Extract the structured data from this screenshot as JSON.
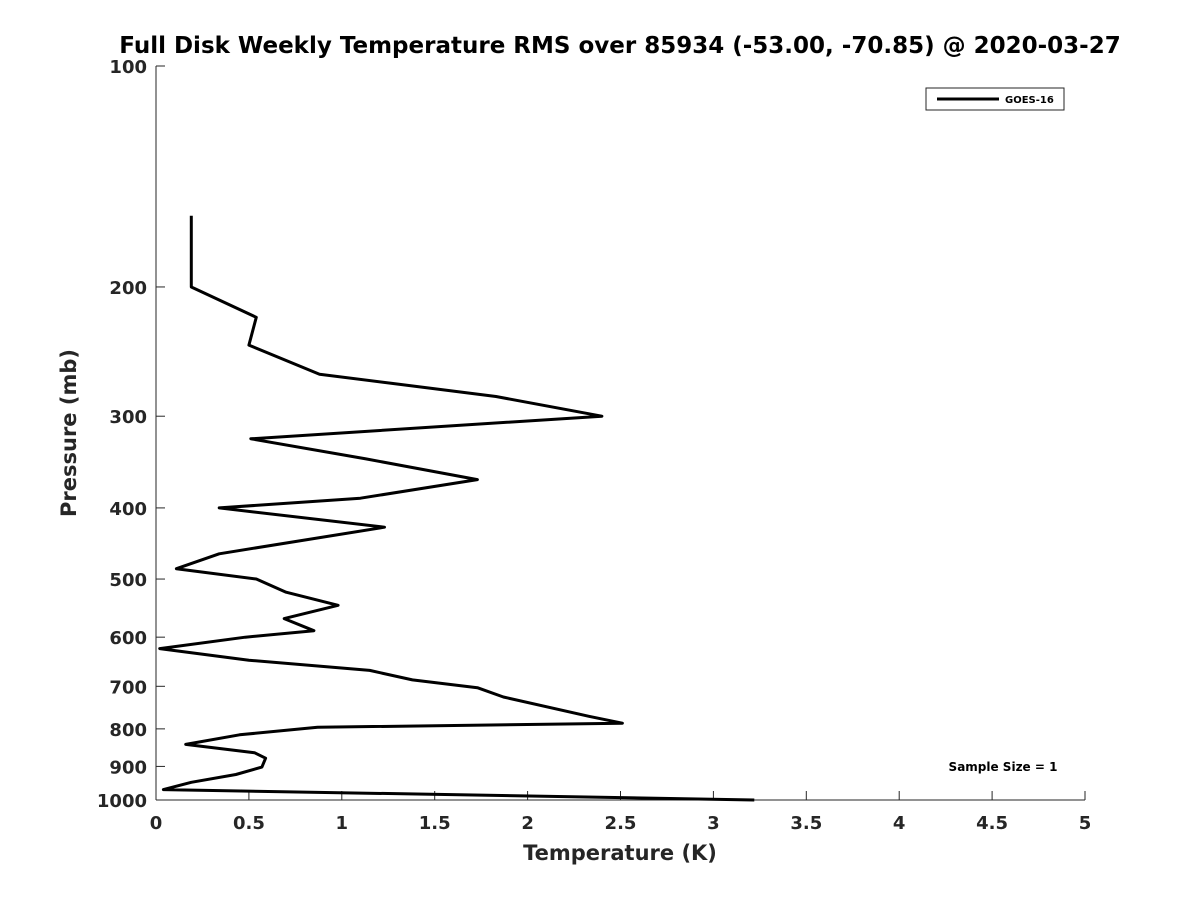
{
  "chart_data": {
    "type": "line",
    "title": "Full Disk Weekly Temperature RMS over 85934 (-53.00, -70.85) @ 2020-03-27",
    "xlabel": "Temperature (K)",
    "ylabel": "Pressure (mb)",
    "xlim": [
      0,
      5
    ],
    "ylim": [
      100,
      1000
    ],
    "yscale": "log",
    "y_reversed": true,
    "xticks": [
      0,
      0.5,
      1,
      1.5,
      2,
      2.5,
      3,
      3.5,
      4,
      4.5,
      5
    ],
    "xtick_labels": [
      "0",
      "0.5",
      "1",
      "1.5",
      "2",
      "2.5",
      "3",
      "3.5",
      "4",
      "4.5",
      "5"
    ],
    "yticks": [
      100,
      200,
      300,
      400,
      500,
      600,
      700,
      800,
      900,
      1000
    ],
    "ytick_labels": [
      "100",
      "200",
      "300",
      "400",
      "500",
      "600",
      "700",
      "800",
      "900",
      "1000"
    ],
    "legend_position": "top-right",
    "series": [
      {
        "name": "GOES-16",
        "color": "#000000",
        "points": [
          [
            0.19,
            160
          ],
          [
            0.19,
            200
          ],
          [
            0.54,
            220
          ],
          [
            0.5,
            240
          ],
          [
            0.88,
            263
          ],
          [
            1.83,
            282
          ],
          [
            2.4,
            300
          ],
          [
            0.51,
            322
          ],
          [
            1.13,
            343
          ],
          [
            1.73,
            366
          ],
          [
            1.1,
            388
          ],
          [
            0.34,
            400
          ],
          [
            1.23,
            425
          ],
          [
            0.34,
            462
          ],
          [
            0.11,
            484
          ],
          [
            0.54,
            500
          ],
          [
            0.7,
            521
          ],
          [
            0.98,
            543
          ],
          [
            0.69,
            566
          ],
          [
            0.85,
            588
          ],
          [
            0.48,
            600
          ],
          [
            0.02,
            622
          ],
          [
            0.5,
            645
          ],
          [
            1.15,
            666
          ],
          [
            1.38,
            686
          ],
          [
            1.73,
            703
          ],
          [
            1.87,
            724
          ],
          [
            2.33,
            769
          ],
          [
            2.51,
            786
          ],
          [
            0.87,
            796
          ],
          [
            0.45,
            815
          ],
          [
            0.16,
            840
          ],
          [
            0.53,
            862
          ],
          [
            0.59,
            877
          ],
          [
            0.57,
            902
          ],
          [
            0.43,
            923
          ],
          [
            0.19,
            946
          ],
          [
            0.04,
            968
          ],
          [
            3.22,
            1000
          ]
        ]
      }
    ],
    "annotations": [
      "Sample Size = 1"
    ]
  }
}
